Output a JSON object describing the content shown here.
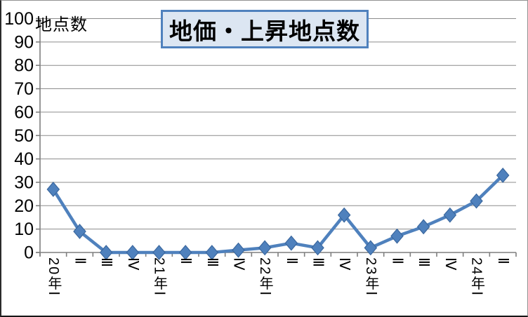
{
  "chart_data": {
    "type": "line",
    "title": "地価・上昇地点数",
    "y_axis_label": "地点数",
    "xlabel": "",
    "ylabel": "地点数",
    "categories": [
      "20年Ⅰ",
      "Ⅱ",
      "Ⅲ",
      "Ⅳ",
      "21年Ⅰ",
      "Ⅱ",
      "Ⅲ",
      "Ⅳ",
      "22年Ⅰ",
      "Ⅱ",
      "Ⅲ",
      "Ⅳ",
      "23年Ⅰ",
      "Ⅱ",
      "Ⅲ",
      "Ⅳ",
      "24年Ⅰ",
      "Ⅱ"
    ],
    "values": [
      27,
      9,
      0,
      0,
      0,
      0,
      0,
      1,
      2,
      4,
      2,
      16,
      2,
      7,
      11,
      16,
      22,
      33
    ],
    "ylim": [
      0,
      100
    ],
    "y_ticks": [
      0,
      10,
      20,
      30,
      40,
      50,
      60,
      70,
      80,
      90,
      100
    ],
    "grid": true,
    "legend": false,
    "marker": "diamond",
    "colors": {
      "series": "#4F81BD",
      "marker_border": "#3A679E",
      "gridline": "#8C8C8C",
      "axis": "#7F7F7F",
      "title_fill": "#DCE6F2",
      "title_border": "#4F81BD",
      "text": "#000000"
    }
  }
}
